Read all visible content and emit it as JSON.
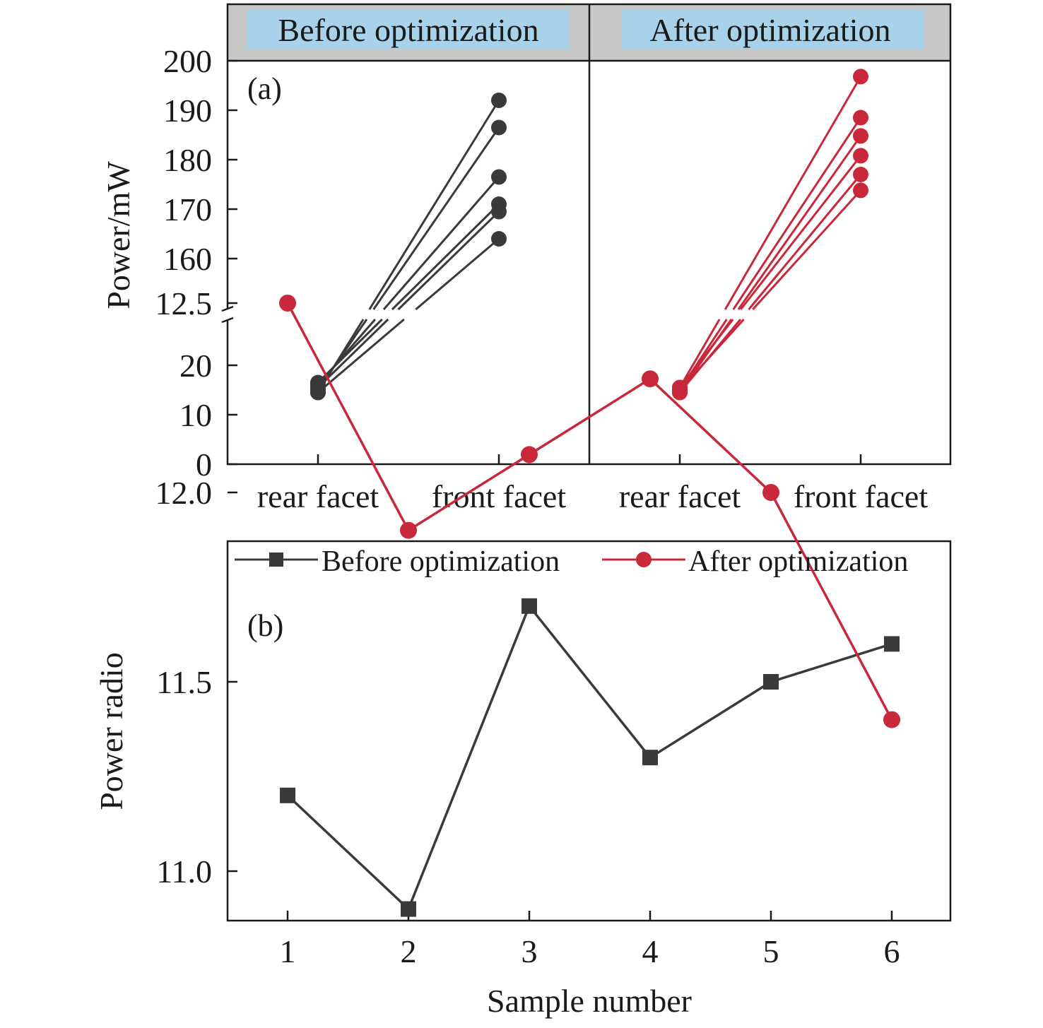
{
  "chart_data": [
    {
      "type": "line",
      "panel_label": "(a)",
      "ylabel": "Power/mW",
      "y_axis_break": true,
      "ylim_lower": [
        0,
        30
      ],
      "ylim_upper": [
        150,
        200
      ],
      "yticks_lower": [
        "0",
        "10",
        "20"
      ],
      "yticks_upper": [
        "160",
        "170",
        "180",
        "190",
        "200"
      ],
      "categories": [
        "rear facet",
        "front facet"
      ],
      "panels": [
        {
          "title": "Before optimization",
          "color": "#3a3a3a",
          "series": [
            {
              "values": [
                14.5,
                192.0
              ]
            },
            {
              "values": [
                15.0,
                186.5
              ]
            },
            {
              "values": [
                16.0,
                176.5
              ]
            },
            {
              "values": [
                16.5,
                171.0
              ]
            },
            {
              "values": [
                15.5,
                169.5
              ]
            },
            {
              "values": [
                14.5,
                164.0
              ]
            }
          ]
        },
        {
          "title": "After optimization",
          "color": "#c8283a",
          "series": [
            {
              "values": [
                15.5,
                196.8
              ]
            },
            {
              "values": [
                15.0,
                188.5
              ]
            },
            {
              "values": [
                14.5,
                184.8
              ]
            },
            {
              "values": [
                15.5,
                180.8
              ]
            },
            {
              "values": [
                14.5,
                177.0
              ]
            },
            {
              "values": [
                15.0,
                173.8
              ]
            }
          ]
        }
      ],
      "header_color": "#a8d2ea"
    },
    {
      "type": "line",
      "panel_label": "(b)",
      "xlabel": "Sample number",
      "ylabel": "Power radio",
      "x": [
        1,
        2,
        3,
        4,
        5,
        6
      ],
      "xticks": [
        "1",
        "2",
        "3",
        "4",
        "5",
        "6"
      ],
      "ylim": [
        10.75,
        12.75
      ],
      "yticks": [
        "11.0",
        "11.5",
        "12.0",
        "12.5"
      ],
      "legend_position": "top",
      "series": [
        {
          "name": "Before optimization",
          "marker": "square",
          "color": "#3a3a3a",
          "values": [
            11.2,
            10.9,
            11.7,
            11.3,
            11.5,
            11.6
          ]
        },
        {
          "name": "After optimization",
          "marker": "circle",
          "color": "#c8283a",
          "values": [
            12.5,
            11.9,
            12.1,
            12.3,
            12.0,
            11.4
          ]
        }
      ]
    }
  ]
}
